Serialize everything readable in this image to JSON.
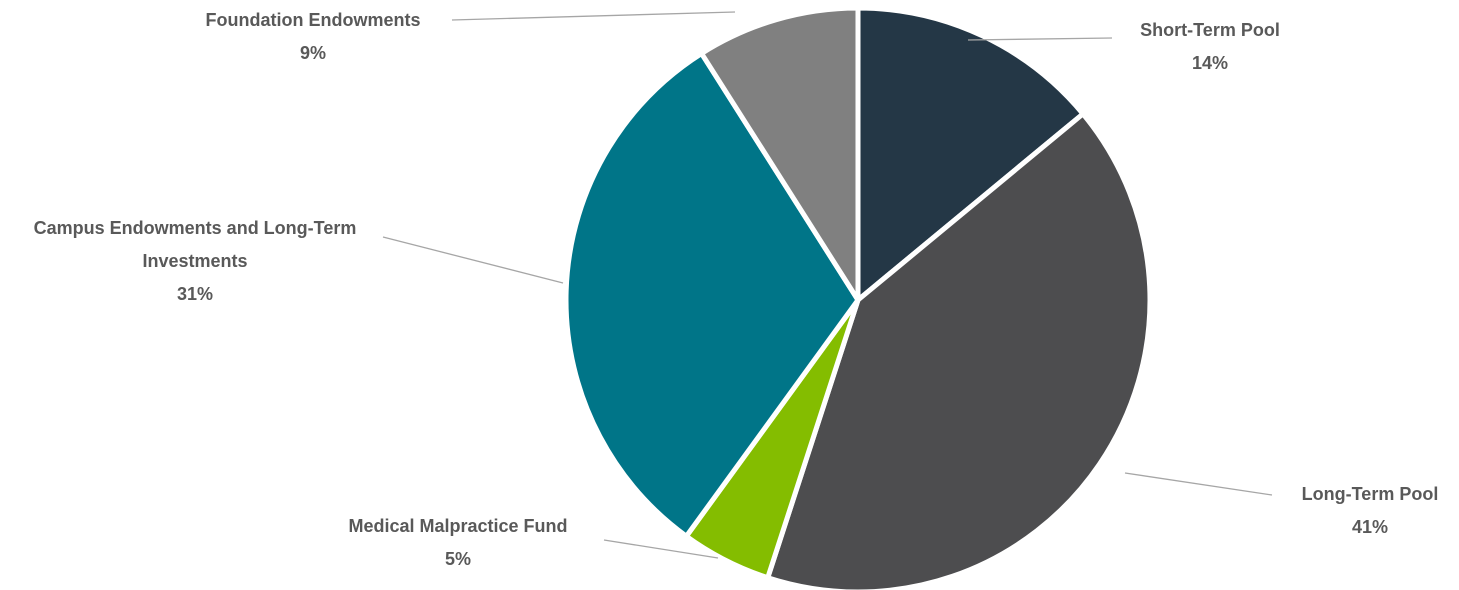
{
  "chart_data": {
    "type": "pie",
    "categories": [
      "Short-Term Pool",
      "Long-Term Pool",
      "Medical Malpractice Fund",
      "Campus Endowments and Long-Term Investments",
      "Foundation Endowments"
    ],
    "values": [
      14,
      41,
      5,
      31,
      9
    ],
    "value_labels": [
      "14%",
      "41%",
      "5%",
      "31%",
      "9%"
    ],
    "colors": [
      "#243746",
      "#4d4d4f",
      "#84bd00",
      "#007588",
      "#808080"
    ]
  }
}
